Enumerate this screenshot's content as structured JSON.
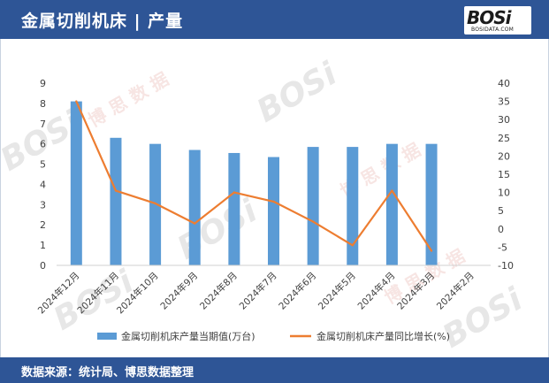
{
  "header": {
    "title": "金属切削机床 | 产量"
  },
  "logo": {
    "text": "BOSi",
    "sub": "BOSIDATA.COM"
  },
  "footer": {
    "source": "数据来源：统计局、博思数据整理"
  },
  "colors": {
    "header_bg": "#2e5596",
    "bar": "#5b9bd5",
    "line": "#ed7d31"
  },
  "chart_data": {
    "type": "bar",
    "categories": [
      "2024年12月",
      "2024年11月",
      "2024年10月",
      "2024年9月",
      "2024年8月",
      "2024年7月",
      "2024年6月",
      "2024年5月",
      "2024年4月",
      "2024年3月",
      "2024年2月"
    ],
    "series": [
      {
        "name": "金属切削机床产量当期值(万台)",
        "type": "bar",
        "axis": "left",
        "values": [
          8.1,
          6.3,
          6.0,
          5.7,
          5.55,
          5.35,
          5.85,
          5.85,
          6.0,
          6.0,
          null
        ]
      },
      {
        "name": "金属切削机床产量同比增长(%)",
        "type": "line",
        "axis": "right",
        "values": [
          35.0,
          10.5,
          7.0,
          1.5,
          10.0,
          7.5,
          2.0,
          -4.5,
          10.5,
          -6.0,
          null
        ]
      }
    ],
    "y_left": {
      "min": 0,
      "max": 9,
      "ticks": [
        0,
        1,
        2,
        3,
        4,
        5,
        6,
        7,
        8,
        9
      ]
    },
    "y_right": {
      "min": -10,
      "max": 40,
      "ticks": [
        -10,
        -5,
        0,
        5,
        10,
        15,
        20,
        25,
        30,
        35,
        40
      ]
    },
    "legend_position": "bottom",
    "grid": false
  }
}
